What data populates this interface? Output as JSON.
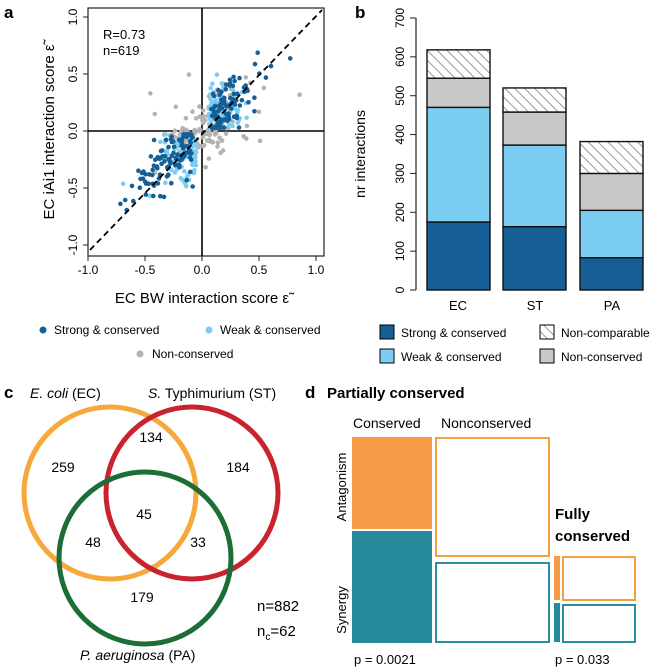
{
  "panels": {
    "a": "a",
    "b": "b",
    "c": "c",
    "d": "d"
  },
  "colors": {
    "strong": "#155e96",
    "weak": "#7ccdf2",
    "noncons": "#b3b3b3",
    "orange": "#f4a041",
    "teal": "#2a8fa0",
    "venn_ec": "#f6a83a",
    "venn_st": "#c9242e",
    "venn_pa": "#1c6e36"
  },
  "chart_data": [
    {
      "type": "scatter",
      "panel": "a",
      "xlabel": "EC BW interaction score ε̃",
      "ylabel": "EC iAi1 interaction score ε̃",
      "xlim": [
        -1.05,
        1.05
      ],
      "ylim": [
        -1.05,
        1.05
      ],
      "xticks": [
        "-1.0",
        "-0.5",
        "0.0",
        "0.5",
        "1.0"
      ],
      "yticks": [
        "-1.0",
        "-0.5",
        "0.0",
        "0.5",
        "1.0"
      ],
      "annotation_r": "R=0.73",
      "annotation_n": "n=619",
      "legend": [
        {
          "label": "Strong & conserved",
          "color": "#155e96"
        },
        {
          "label": "Weak & conserved",
          "color": "#7ccdf2"
        },
        {
          "label": "Non-conserved",
          "color": "#b3b3b3"
        }
      ]
    },
    {
      "type": "bar",
      "panel": "b",
      "ylabel": "nr interactions",
      "categories": [
        "EC",
        "ST",
        "PA"
      ],
      "ylim": [
        0,
        700
      ],
      "yticks": [
        "0",
        "100",
        "200",
        "300",
        "400",
        "500",
        "600",
        "700"
      ],
      "series": [
        {
          "name": "Strong & conserved",
          "color": "#155e96",
          "values": [
            175,
            163,
            83
          ]
        },
        {
          "name": "Weak & conserved",
          "color": "#7ccdf2",
          "values": [
            295,
            210,
            122
          ]
        },
        {
          "name": "Non-conserved",
          "color": "#c8c8c8",
          "values": [
            75,
            85,
            95
          ]
        },
        {
          "name": "Non-comparable",
          "color": "hatch",
          "values": [
            73,
            62,
            82
          ]
        }
      ],
      "legend": [
        {
          "label": "Strong & conserved"
        },
        {
          "label": "Non-comparable"
        },
        {
          "label": "Weak & conserved"
        },
        {
          "label": "Non-conserved"
        }
      ]
    },
    {
      "type": "venn",
      "panel": "c",
      "sets": [
        {
          "name_italic": "E. coli",
          "name_rest": " (EC)"
        },
        {
          "name_italic": "S.",
          "name_rest": " Typhimurium (ST)"
        },
        {
          "name_italic": "P. aeruginosa",
          "name_rest": " (PA)"
        }
      ],
      "regions": {
        "ec_only": "259",
        "ec_st": "134",
        "st_only": "184",
        "all": "45",
        "ec_pa": "48",
        "st_pa": "33",
        "pa_only": "179"
      },
      "n": "n=882",
      "nc_main": "n",
      "nc_sub": "c",
      "nc_value": "=62"
    },
    {
      "type": "mosaic",
      "panel": "d",
      "title_partial": "Partially conserved",
      "title_fully_line1": "Fully",
      "title_fully_line2": "conserved",
      "col_conserved": "Conserved",
      "col_nonconserved": "Nonconserved",
      "row_antagonism": "Antagonism",
      "row_synergy": "Synergy",
      "p_partial": "p = 0.0021",
      "p_fully": "p = 0.033"
    }
  ]
}
